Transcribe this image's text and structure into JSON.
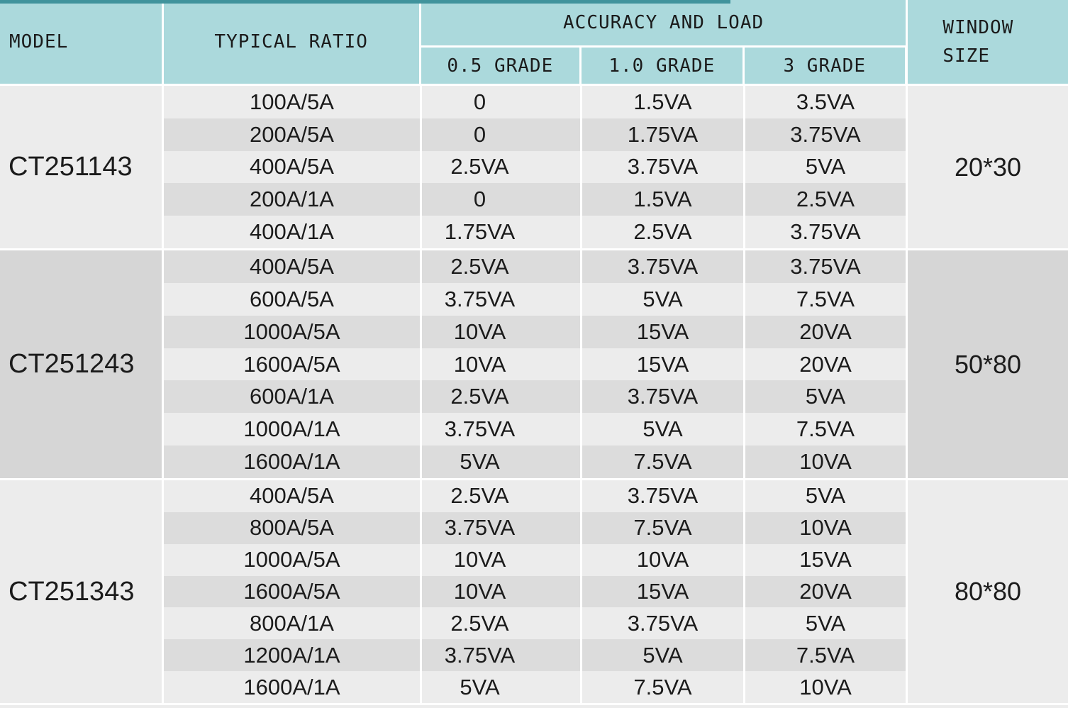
{
  "theme": {
    "header_bg": "#abd9dc",
    "top_strip": "#40939c",
    "band_light": "#ececec",
    "band_dark": "#dcdcdc",
    "merged_dark": "#d6d6d6",
    "grid_line": "#ffffff",
    "text": "#1b1b1b"
  },
  "header": {
    "model": "MODEL",
    "typical_ratio": "TYPICAL RATIO",
    "accuracy_and_load": "ACCURACY AND LOAD",
    "grades": [
      "0.5 GRADE",
      "1.0 GRADE",
      "3 GRADE"
    ],
    "window_line1": "WINDOW",
    "window_line2": "SIZE"
  },
  "groups": [
    {
      "model": "CT251143",
      "window_size": "20*30",
      "rows": [
        {
          "ratio": "100A/5A",
          "g05": "0",
          "g10": "1.5VA",
          "g3": "3.5VA"
        },
        {
          "ratio": "200A/5A",
          "g05": "0",
          "g10": "1.75VA",
          "g3": "3.75VA"
        },
        {
          "ratio": "400A/5A",
          "g05": "2.5VA",
          "g10": "3.75VA",
          "g3": "5VA"
        },
        {
          "ratio": "200A/1A",
          "g05": "0",
          "g10": "1.5VA",
          "g3": "2.5VA"
        },
        {
          "ratio": "400A/1A",
          "g05": "1.75VA",
          "g10": "2.5VA",
          "g3": "3.75VA"
        }
      ]
    },
    {
      "model": "CT251243",
      "window_size": "50*80",
      "rows": [
        {
          "ratio": "400A/5A",
          "g05": "2.5VA",
          "g10": "3.75VA",
          "g3": "3.75VA"
        },
        {
          "ratio": "600A/5A",
          "g05": "3.75VA",
          "g10": "5VA",
          "g3": "7.5VA"
        },
        {
          "ratio": "1000A/5A",
          "g05": "10VA",
          "g10": "15VA",
          "g3": "20VA"
        },
        {
          "ratio": "1600A/5A",
          "g05": "10VA",
          "g10": "15VA",
          "g3": "20VA"
        },
        {
          "ratio": "600A/1A",
          "g05": "2.5VA",
          "g10": "3.75VA",
          "g3": "5VA"
        },
        {
          "ratio": "1000A/1A",
          "g05": "3.75VA",
          "g10": "5VA",
          "g3": "7.5VA"
        },
        {
          "ratio": "1600A/1A",
          "g05": "5VA",
          "g10": "7.5VA",
          "g3": "10VA"
        }
      ]
    },
    {
      "model": "CT251343",
      "window_size": "80*80",
      "rows": [
        {
          "ratio": "400A/5A",
          "g05": "2.5VA",
          "g10": "3.75VA",
          "g3": "5VA"
        },
        {
          "ratio": "800A/5A",
          "g05": "3.75VA",
          "g10": "7.5VA",
          "g3": "10VA"
        },
        {
          "ratio": "1000A/5A",
          "g05": "10VA",
          "g10": "10VA",
          "g3": "15VA"
        },
        {
          "ratio": "1600A/5A",
          "g05": "10VA",
          "g10": "15VA",
          "g3": "20VA"
        },
        {
          "ratio": "800A/1A",
          "g05": "2.5VA",
          "g10": "3.75VA",
          "g3": "5VA"
        },
        {
          "ratio": "1200A/1A",
          "g05": "3.75VA",
          "g10": "5VA",
          "g3": "7.5VA"
        },
        {
          "ratio": "1600A/1A",
          "g05": "5VA",
          "g10": "7.5VA",
          "g3": "10VA"
        }
      ]
    }
  ]
}
